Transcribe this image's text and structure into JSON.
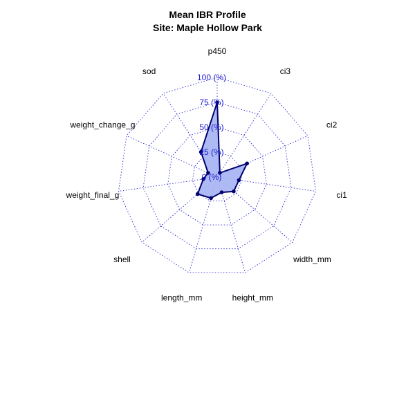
{
  "chart_data": {
    "type": "radar",
    "title": "Mean IBR Profile",
    "subtitle": "Site: Maple Hollow Park",
    "axes": [
      "p450",
      "ci3",
      "ci2",
      "ci1",
      "width_mm",
      "height_mm",
      "length_mm",
      "shell",
      "weight_final_g",
      "weight_change_g",
      "sod"
    ],
    "values": [
      75,
      5,
      33,
      22,
      22,
      16,
      22,
      26,
      14,
      10,
      30
    ],
    "rmax": 100,
    "ticks": [
      0,
      25,
      50,
      75,
      100
    ],
    "tick_labels": [
      "0 (%)",
      "25 (%)",
      "50 (%)",
      "75 (%)",
      "100 (%)"
    ],
    "grid": true,
    "colors": {
      "fill": "#aab6f2",
      "line": "#00006e",
      "grid": "#3a3ad6",
      "tick_text": "#1818d0"
    }
  }
}
